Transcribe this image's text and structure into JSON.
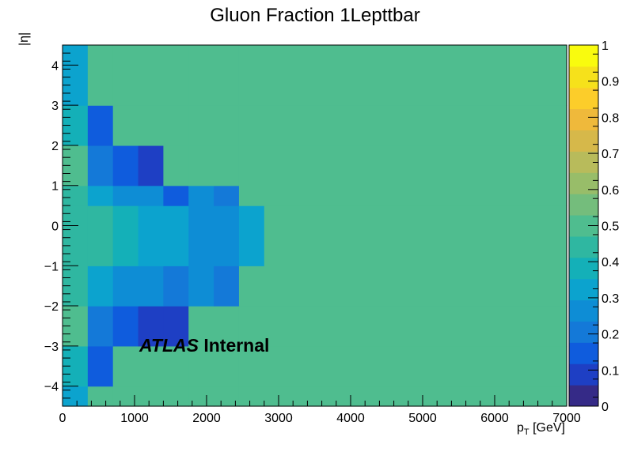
{
  "chart_data": {
    "type": "heatmap",
    "title": "Gluon Fraction 1Lepttbar",
    "xlabel": "p",
    "xlabel_sub": "T",
    "xlabel_unit": "[GeV]",
    "ylabel": "|η|",
    "annotation": {
      "bold_italic": "ATLAS",
      "bold": "Internal"
    },
    "xlim": [
      0,
      7000
    ],
    "ylim": [
      -4.5,
      4.5
    ],
    "zlim": [
      0,
      1
    ],
    "x_ticks": [
      0,
      1000,
      2000,
      3000,
      4000,
      5000,
      6000,
      7000
    ],
    "x_tick_labels": [
      "0",
      "1000",
      "2000",
      "3000",
      "4000",
      "5000",
      "6000",
      "7000"
    ],
    "y_ticks": [
      -4,
      -3,
      -2,
      -1,
      0,
      1,
      2,
      3,
      4
    ],
    "y_tick_labels": [
      "−4",
      "−3",
      "−2",
      "−1",
      "0",
      "1",
      "2",
      "3",
      "4"
    ],
    "z_ticks": [
      0,
      0.1,
      0.2,
      0.3,
      0.4,
      0.5,
      0.6,
      0.7,
      0.8,
      0.9,
      1
    ],
    "z_tick_labels": [
      "0",
      "0.1",
      "0.2",
      "0.3",
      "0.4",
      "0.5",
      "0.6",
      "0.7",
      "0.8",
      "0.9",
      "1"
    ],
    "x_edges": [
      0,
      350,
      700,
      1050,
      1400,
      1750,
      2100,
      2450,
      2800,
      7000
    ],
    "y_edges": [
      -4.5,
      -4,
      -3,
      -2,
      -1,
      -0.5,
      0.5,
      1,
      2,
      3,
      4,
      4.5
    ],
    "default_value": 0.5,
    "values": [
      [
        0.33,
        0.5,
        0.5,
        0.5,
        0.5,
        0.5,
        0.5,
        0.5,
        0.5
      ],
      [
        0.4,
        0.15,
        0.5,
        0.5,
        0.5,
        0.5,
        0.5,
        0.5,
        0.5
      ],
      [
        0.5,
        0.22,
        0.13,
        0.1,
        0.1,
        0.5,
        0.5,
        0.5,
        0.5
      ],
      [
        0.45,
        0.35,
        0.28,
        0.25,
        0.2,
        0.25,
        0.2,
        0.5,
        0.5
      ],
      [
        0.42,
        0.42,
        0.38,
        0.34,
        0.34,
        0.25,
        0.25,
        0.35,
        0.5
      ],
      [
        0.45,
        0.35,
        0.28,
        0.25,
        0.15,
        0.25,
        0.2,
        0.5,
        0.5
      ],
      [
        0.5,
        0.22,
        0.14,
        0.11,
        0.5,
        0.5,
        0.5,
        0.5,
        0.5
      ],
      [
        0.4,
        0.15,
        0.5,
        0.5,
        0.5,
        0.5,
        0.5,
        0.5,
        0.5
      ],
      [
        0.33,
        0.5,
        0.5,
        0.5,
        0.5,
        0.5,
        0.5,
        0.5,
        0.5
      ]
    ],
    "value_rows_y_edges": [
      -4.5,
      -4,
      -3,
      -2,
      -1,
      0.5,
      1,
      2,
      3,
      4.5
    ],
    "palette": [
      "#352a87",
      "#1e3fc4",
      "#0f5cdd",
      "#1479d8",
      "#0e8dd5",
      "#0ca3ce",
      "#14b0b8",
      "#2fb7a1",
      "#4fbd8f",
      "#74bd7c",
      "#98bd69",
      "#b8bb5b",
      "#d6b84a",
      "#efb93b",
      "#fccd2a",
      "#f6e11b",
      "#f9fb0e"
    ]
  }
}
